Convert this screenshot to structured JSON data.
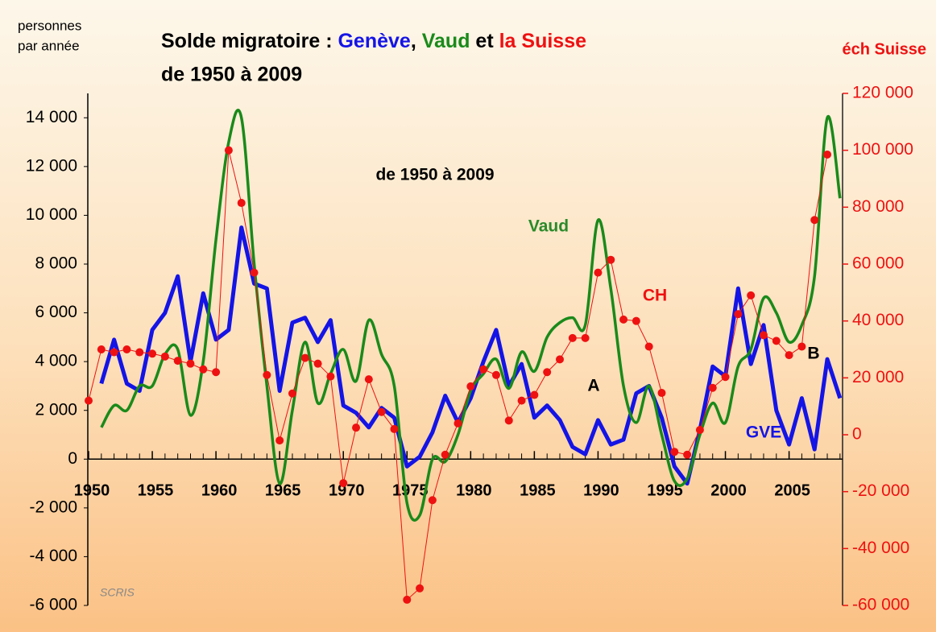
{
  "chart_data": {
    "type": "line",
    "title": [
      {
        "text": "Solde migratoire : ",
        "color": "#000000"
      },
      {
        "text": "Genève",
        "color": "#1414e6"
      },
      {
        "text": ", ",
        "color": "#000000"
      },
      {
        "text": "Vaud",
        "color": "#1a8a1a"
      },
      {
        "text": " et ",
        "color": "#000000"
      },
      {
        "text": "la Suisse",
        "color": "#ee1111"
      }
    ],
    "subtitle": "de 1950 à 2009",
    "y_label": [
      "personnes",
      "par année"
    ],
    "y2_label": "éch Suisse",
    "source": "SCRIS",
    "annotations": [
      {
        "text": "de 1950 à 2009",
        "color": "#000000"
      },
      {
        "text": "Vaud",
        "color": "#2a8a2a"
      },
      {
        "text": "CH",
        "color": "#ee1111"
      },
      {
        "text": "A",
        "color": "#000000"
      },
      {
        "text": "B",
        "color": "#000000"
      },
      {
        "text": "GVE",
        "color": "#1414e6"
      }
    ],
    "x": [
      1950,
      1951,
      1952,
      1953,
      1954,
      1955,
      1956,
      1957,
      1958,
      1959,
      1960,
      1961,
      1962,
      1963,
      1964,
      1965,
      1966,
      1967,
      1968,
      1969,
      1970,
      1971,
      1972,
      1973,
      1974,
      1975,
      1976,
      1977,
      1978,
      1979,
      1980,
      1981,
      1982,
      1983,
      1984,
      1985,
      1986,
      1987,
      1988,
      1989,
      1990,
      1991,
      1992,
      1993,
      1994,
      1995,
      1996,
      1997,
      1998,
      1999,
      2000,
      2001,
      2002,
      2003,
      2004,
      2005,
      2006,
      2007,
      2008,
      2009
    ],
    "xlim": [
      1950,
      2009.2
    ],
    "xticks": [
      1950,
      1955,
      1960,
      1965,
      1970,
      1975,
      1980,
      1985,
      1990,
      1995,
      2000,
      2005
    ],
    "ylim": [
      -6000,
      15000
    ],
    "yticks": [
      {
        "value": -6000,
        "label": "-6 000"
      },
      {
        "value": -4000,
        "label": "-4 000"
      },
      {
        "value": -2000,
        "label": "-2 000"
      },
      0,
      {
        "value": 2000,
        "label": "2 000"
      },
      {
        "value": 4000,
        "label": "4 000"
      },
      {
        "value": 6000,
        "label": "6 000"
      },
      {
        "value": 8000,
        "label": "8 000"
      },
      {
        "value": 10000,
        "label": "10 000"
      },
      {
        "value": 12000,
        "label": "12 000"
      },
      {
        "value": 14000,
        "label": "14 000"
      }
    ],
    "y2lim": [
      -60000,
      120000
    ],
    "y2ticks": [
      {
        "value": -60000,
        "label": "-60 000"
      },
      {
        "value": -40000,
        "label": "-40 000"
      },
      {
        "value": -20000,
        "label": "-20 000"
      },
      0,
      {
        "value": 20000,
        "label": "20 000"
      },
      {
        "value": 40000,
        "label": "40 000"
      },
      {
        "value": 60000,
        "label": "60 000"
      },
      {
        "value": 80000,
        "label": "80 000"
      },
      {
        "value": 100000,
        "label": "100 000"
      },
      {
        "value": 120000,
        "label": "120 000"
      }
    ],
    "series": [
      {
        "name": "Genève",
        "color": "#1414e6",
        "style": "thick",
        "values": [
          null,
          3100,
          4900,
          3100,
          2800,
          5300,
          6000,
          7500,
          4000,
          6800,
          4900,
          5300,
          9500,
          7200,
          7000,
          2800,
          5600,
          5800,
          4800,
          5700,
          2200,
          1900,
          1300,
          2100,
          1700,
          -300,
          100,
          1100,
          2600,
          1500,
          2500,
          4000,
          5300,
          3000,
          3900,
          1700,
          2200,
          1600,
          500,
          200,
          1600,
          600,
          800,
          2700,
          3000,
          1700,
          -300,
          -1000,
          1200,
          3800,
          3400,
          7000,
          3900,
          5500,
          2000,
          600,
          2500,
          400,
          4100,
          2500
        ]
      },
      {
        "name": "Vaud",
        "color": "#1a8a1a",
        "style": "smooth",
        "values": [
          null,
          1300,
          2200,
          2000,
          3000,
          3000,
          4300,
          4500,
          1800,
          4000,
          9000,
          13000,
          14000,
          8000,
          3000,
          -1000,
          2000,
          4800,
          2300,
          3500,
          4500,
          3200,
          5700,
          4300,
          3000,
          -1800,
          -2300,
          0,
          -100,
          1000,
          2800,
          3500,
          4100,
          2900,
          4400,
          3600,
          5000,
          5600,
          5800,
          5500,
          9800,
          7000,
          3000,
          1500,
          3000,
          1000,
          -900,
          -800,
          1000,
          2300,
          1500,
          3800,
          4500,
          6600,
          6000,
          4800,
          5500,
          7500,
          14000,
          10700
        ]
      },
      {
        "name": "Suisse",
        "color": "#ee1111",
        "style": "dots",
        "axis": "y2",
        "values": [
          12000,
          30000,
          29000,
          30000,
          29000,
          28500,
          27500,
          26000,
          25000,
          23000,
          22000,
          100000,
          81500,
          57000,
          21000,
          -2000,
          14500,
          27000,
          25000,
          20500,
          -17000,
          2500,
          19500,
          8000,
          2000,
          -58000,
          -54000,
          -23000,
          -7000,
          4000,
          17000,
          23000,
          21000,
          5000,
          12000,
          14000,
          22000,
          26500,
          34000,
          34000,
          57000,
          61500,
          40500,
          40000,
          31000,
          14700,
          -6000,
          -7000,
          1700,
          16500,
          20300,
          42400,
          49000,
          35000,
          33000,
          28000,
          31000,
          75500,
          98500,
          null
        ]
      }
    ]
  }
}
